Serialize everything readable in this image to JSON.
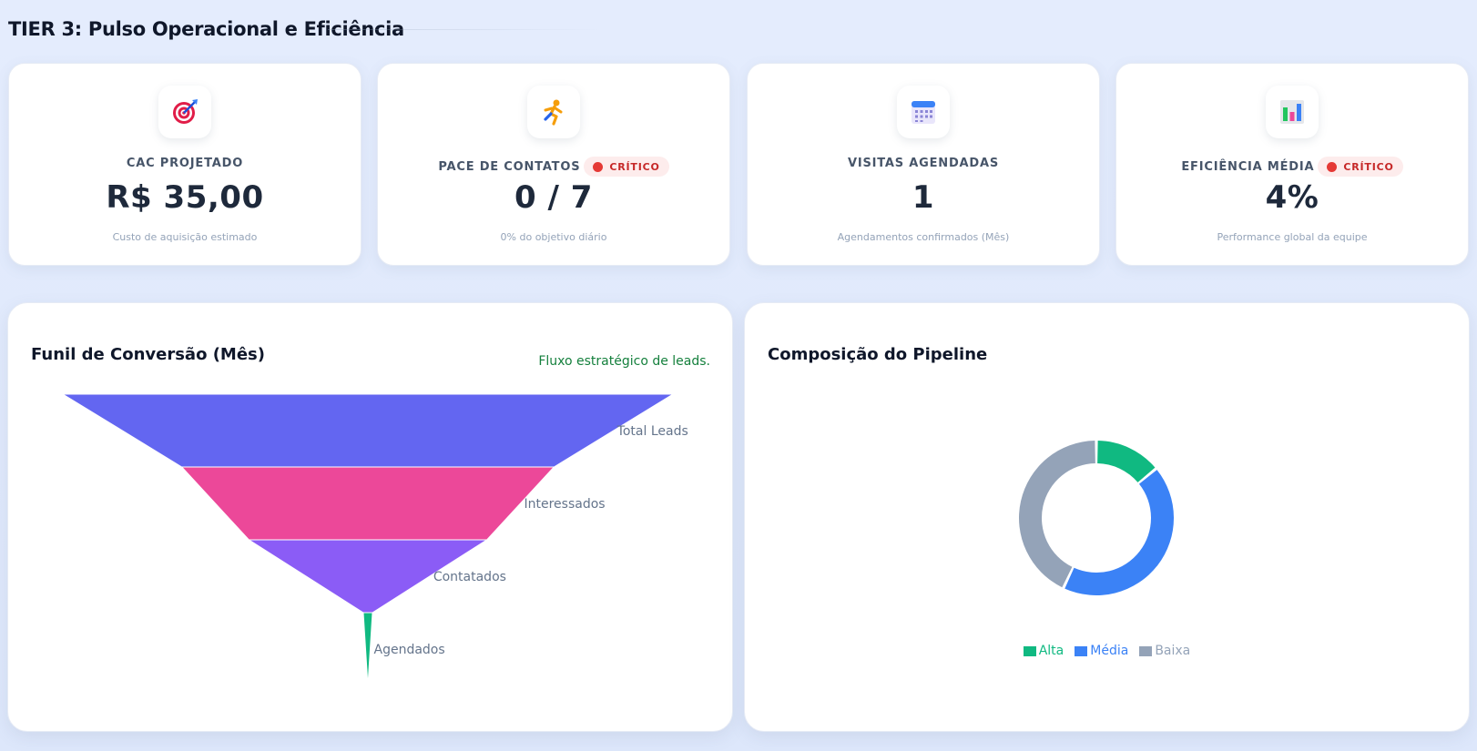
{
  "section": {
    "title": "TIER 3: Pulso Operacional e Eficiência"
  },
  "kpis": [
    {
      "icon": "target-icon",
      "label": "CAC PROJETADO",
      "value": "R$ 35,00",
      "subtitle": "Custo de aquisição estimado",
      "badge": null
    },
    {
      "icon": "runner-icon",
      "label": "PACE DE CONTATOS",
      "value": "0 / 7",
      "subtitle": "0% do objetivo diário",
      "badge": "CRÍTICO"
    },
    {
      "icon": "calendar-icon",
      "label": "VISITAS AGENDADAS",
      "value": "1",
      "subtitle": "Agendamentos confirmados (Mês)",
      "badge": null
    },
    {
      "icon": "bar-chart-icon",
      "label": "EFICIÊNCIA MÉDIA",
      "value": "4%",
      "subtitle": "Performance global da equipe",
      "badge": "CRÍTICO"
    }
  ],
  "colors": {
    "critical": "#e53935",
    "funnel": [
      "#6366f1",
      "#ec4899",
      "#8b5cf6",
      "#10b981"
    ],
    "pipeline": {
      "Alta": "#10b981",
      "Média": "#3b82f6",
      "Baixa": "#94a3b8"
    }
  },
  "funnel_panel": {
    "title": "Funil de Conversão (Mês)",
    "subtitle": "Fluxo estratégico de leads."
  },
  "pipeline_panel": {
    "title": "Composição do Pipeline"
  },
  "chart_data": [
    {
      "type": "funnel",
      "title": "Funil de Conversão (Mês)",
      "categories": [
        "Total Leads",
        "Interessados",
        "Contatados",
        "Agendados"
      ],
      "values": [
        100,
        61,
        39,
        1.5
      ]
    },
    {
      "type": "pie",
      "subtype": "donut",
      "title": "Composição do Pipeline",
      "categories": [
        "Alta",
        "Média",
        "Baixa"
      ],
      "values": [
        14,
        43,
        43
      ],
      "legend": "bottom"
    }
  ]
}
